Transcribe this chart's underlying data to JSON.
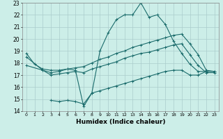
{
  "title": "",
  "xlabel": "Humidex (Indice chaleur)",
  "ylabel": "",
  "bg_color": "#cceee8",
  "grid_color": "#aacccc",
  "line_color": "#1a6b6b",
  "xlim": [
    -0.5,
    23.5
  ],
  "ylim": [
    14,
    23
  ],
  "xticks": [
    0,
    1,
    2,
    3,
    4,
    5,
    6,
    7,
    8,
    9,
    10,
    11,
    12,
    13,
    14,
    15,
    16,
    17,
    18,
    19,
    20,
    21,
    22,
    23
  ],
  "yticks": [
    14,
    15,
    16,
    17,
    18,
    19,
    20,
    21,
    22,
    23
  ],
  "curve1_x": [
    0,
    1,
    2,
    3,
    4,
    5,
    6,
    7,
    8,
    9,
    10,
    11,
    12,
    13,
    14,
    15,
    16,
    17,
    18,
    19,
    20,
    21,
    22
  ],
  "curve1_y": [
    18.8,
    17.9,
    17.5,
    17.4,
    17.4,
    17.5,
    17.4,
    14.4,
    15.5,
    19.0,
    20.5,
    21.6,
    22.0,
    22.0,
    23.0,
    21.8,
    22.0,
    21.2,
    19.8,
    18.8,
    17.9,
    17.3,
    17.3
  ],
  "curve2_x": [
    0,
    2,
    3,
    4,
    5,
    6,
    7,
    8,
    9,
    10,
    11,
    12,
    13,
    14,
    15,
    16,
    17,
    18,
    19,
    20,
    21,
    22,
    23
  ],
  "curve2_y": [
    18.5,
    17.4,
    17.2,
    17.3,
    17.5,
    17.6,
    17.7,
    18.0,
    18.3,
    18.5,
    18.8,
    19.0,
    19.3,
    19.5,
    19.7,
    19.9,
    20.1,
    20.3,
    20.4,
    19.6,
    18.7,
    17.4,
    17.3
  ],
  "curve3_x": [
    0,
    2,
    3,
    4,
    5,
    6,
    7,
    8,
    9,
    10,
    11,
    12,
    13,
    14,
    15,
    16,
    17,
    18,
    19,
    20,
    21,
    22,
    23
  ],
  "curve3_y": [
    17.8,
    17.4,
    17.0,
    17.1,
    17.2,
    17.3,
    17.2,
    17.5,
    17.7,
    17.9,
    18.1,
    18.4,
    18.6,
    18.8,
    18.9,
    19.1,
    19.3,
    19.5,
    19.6,
    18.7,
    17.8,
    17.2,
    17.2
  ],
  "curve4_x": [
    3,
    4,
    5,
    6,
    7,
    8,
    9,
    10,
    11,
    12,
    13,
    14,
    15,
    16,
    17,
    18,
    19,
    20,
    21,
    22,
    23
  ],
  "curve4_y": [
    14.9,
    14.8,
    14.9,
    14.8,
    14.6,
    15.5,
    15.7,
    15.9,
    16.1,
    16.3,
    16.5,
    16.7,
    16.9,
    17.1,
    17.3,
    17.4,
    17.4,
    17.0,
    17.0,
    17.3,
    17.3
  ]
}
